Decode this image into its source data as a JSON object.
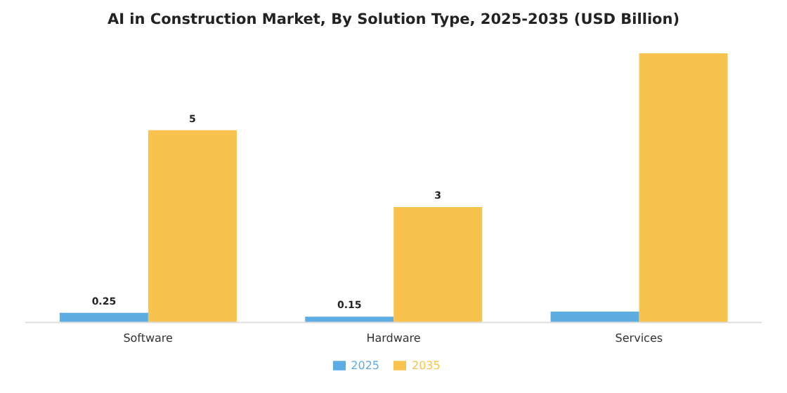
{
  "chart_data": {
    "type": "bar",
    "title": "AI in Construction Market, By Solution Type, 2025-2035 (USD Billion)",
    "categories": [
      "Software",
      "Hardware",
      "Services"
    ],
    "series": [
      {
        "name": "2025",
        "color": "#5dade2",
        "values": [
          0.25,
          0.15,
          0.28
        ],
        "value_labels": [
          "0.25",
          "0.15",
          null
        ]
      },
      {
        "name": "2035",
        "color": "#f7c34c",
        "values": [
          5,
          3,
          7
        ],
        "value_labels": [
          "5",
          "3",
          null
        ]
      }
    ],
    "legend": "bottom",
    "grid": false
  }
}
